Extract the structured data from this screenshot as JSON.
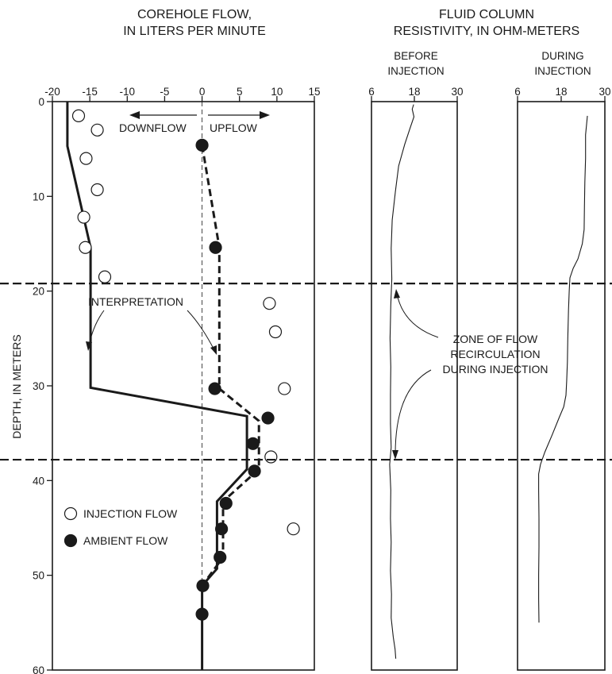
{
  "chart_data": [
    {
      "type": "scatter",
      "title": [
        "COREHOLE FLOW,",
        "IN LITERS PER MINUTE"
      ],
      "ylabel": "DEPTH, IN METERS",
      "xlim": [
        -20,
        15
      ],
      "ylim": [
        0,
        60
      ],
      "y_inverted": true,
      "x_ticks": [
        -20,
        -15,
        -10,
        -5,
        0,
        5,
        10,
        15
      ],
      "x_tick_labels": [
        "-20",
        "-15",
        "-10",
        "-5",
        "0",
        "5",
        "10",
        "15"
      ],
      "y_ticks": [
        0,
        10,
        20,
        30,
        40,
        50,
        60
      ],
      "y_tick_labels": [
        "0",
        "10",
        "20",
        "30",
        "40",
        "50",
        "60"
      ],
      "series": [
        {
          "name": "INJECTION FLOW",
          "marker": "open-circle",
          "points": [
            [
              -16.5,
              1.5
            ],
            [
              -14,
              3
            ],
            [
              -15.5,
              6
            ],
            [
              -14,
              9.3
            ],
            [
              -15.8,
              12.2
            ],
            [
              -15.6,
              15.4
            ],
            [
              -13,
              18.5
            ],
            [
              9,
              21.3
            ],
            [
              9.8,
              24.3
            ],
            [
              11,
              30.3
            ],
            [
              9.2,
              37.5
            ],
            [
              12.2,
              45.1
            ]
          ]
        },
        {
          "name": "AMBIENT FLOW",
          "marker": "filled-circle",
          "points": [
            [
              0,
              4.6
            ],
            [
              1.8,
              15.4
            ],
            [
              1.7,
              30.3
            ],
            [
              8.8,
              33.4
            ],
            [
              6.8,
              36.1
            ],
            [
              7,
              39
            ],
            [
              3.2,
              42.4
            ],
            [
              2.6,
              45.1
            ],
            [
              2.4,
              48.1
            ],
            [
              0.1,
              51.1
            ],
            [
              0,
              54.1
            ]
          ]
        },
        {
          "name": "interpretation-injection",
          "line": "solid",
          "points": [
            [
              -18,
              0
            ],
            [
              -18,
              4.7
            ],
            [
              -14.9,
              15.4
            ],
            [
              -14.9,
              30.2
            ],
            [
              6,
              33.2
            ],
            [
              6,
              38.8
            ],
            [
              2,
              42.2
            ],
            [
              2,
              49.3
            ],
            [
              0,
              51.1
            ],
            [
              0,
              60
            ]
          ]
        },
        {
          "name": "interpretation-ambient",
          "line": "dashed",
          "points": [
            [
              0,
              4.6
            ],
            [
              2.3,
              15.4
            ],
            [
              2.3,
              30.3
            ],
            [
              7.6,
              33.7
            ],
            [
              7.6,
              38.8
            ],
            [
              2.8,
              42.2
            ],
            [
              2.8,
              48.1
            ],
            [
              0,
              51.1
            ]
          ]
        }
      ],
      "zero_reference": "thin-dashed-vertical",
      "flow_arrows": [
        "DOWNFLOW",
        "UPFLOW"
      ],
      "annotation": "INTERPRETATION",
      "legend": [
        "INJECTION FLOW",
        "AMBIENT FLOW"
      ],
      "legend_placement": "bottom-left"
    },
    {
      "type": "line",
      "title": [
        "FLUID COLUMN",
        "RESISTIVITY, IN OHM-METERS"
      ],
      "subtitle": [
        "BEFORE",
        "INJECTION"
      ],
      "xlim": [
        6,
        30
      ],
      "ylim": [
        0,
        60
      ],
      "y_inverted": true,
      "x_ticks": [
        6,
        18,
        30
      ],
      "x_tick_labels": [
        "6",
        "18",
        "30"
      ],
      "series": [
        {
          "name": "",
          "x": [
            17.8,
            17.4,
            17.9,
            16.8,
            15.3,
            13.6,
            12.7,
            11.8,
            11.5,
            11.7,
            11.4,
            11.2,
            11.4,
            11.3,
            11.3,
            11.5,
            11.1,
            11.4,
            11.3,
            11.5,
            11.3,
            11.6,
            11.5,
            12.1,
            12.6,
            12.8
          ],
          "y": [
            0.3,
            0.8,
            1.6,
            2.8,
            4.5,
            6.8,
            9.5,
            12.5,
            15.5,
            18.7,
            21.5,
            25,
            28,
            31,
            34,
            36.5,
            38.3,
            41,
            44,
            46.5,
            49.5,
            52,
            54.5,
            56.5,
            57.8,
            58.8
          ]
        }
      ]
    },
    {
      "type": "line",
      "title": [],
      "subtitle": [
        "DURING",
        "INJECTION"
      ],
      "xlim": [
        6,
        30
      ],
      "ylim": [
        0,
        60
      ],
      "y_inverted": true,
      "x_ticks": [
        6,
        18,
        30
      ],
      "x_tick_labels": [
        "6",
        "18",
        "30"
      ],
      "series": [
        {
          "name": "",
          "x": [
            25.2,
            25,
            24.7,
            24.7,
            24.5,
            24.4,
            24.3,
            23.8,
            22.6,
            21.3,
            20.4,
            20.2,
            20,
            19.8,
            19.7,
            19.5,
            19.3,
            18.7,
            17.5,
            15.5,
            13.5,
            12.3,
            11.8,
            11.8,
            11.9,
            11.9,
            11.8,
            11.8,
            11.9
          ],
          "y": [
            1.5,
            2.3,
            3.5,
            6,
            8.5,
            11,
            13.5,
            15,
            16.6,
            17.6,
            18.6,
            20,
            22,
            25,
            27.5,
            29.5,
            31,
            32.2,
            33.3,
            35.2,
            37,
            38.3,
            39.3,
            41,
            44,
            47,
            50,
            52.5,
            55
          ]
        }
      ]
    }
  ],
  "annotations": {
    "zone": [
      "ZONE OF FLOW",
      "RECIRCULATION",
      "DURING INJECTION"
    ],
    "zone_depths": [
      19.2,
      37.8
    ]
  },
  "colors": {
    "ink": "#1a1a1a",
    "background": "#ffffff"
  }
}
